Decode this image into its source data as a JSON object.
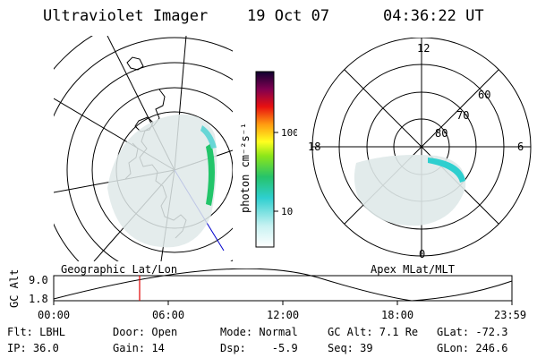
{
  "header": {
    "instrument": "Ultraviolet Imager",
    "date": "19 Oct 07",
    "time": "04:36:22 UT"
  },
  "colorbar": {
    "label": "photon cm⁻²s⁻¹",
    "ticks": [
      "100",
      "10"
    ]
  },
  "polar_plot": {
    "hour_labels": [
      "12",
      "18",
      "6",
      "0"
    ],
    "lat_labels": [
      "60",
      "70",
      "80"
    ]
  },
  "map_labels": {
    "geographic": "Geographic Lat/Lon",
    "apex": "Apex MLat/MLT"
  },
  "altitude_plot": {
    "ylabel": "GC Alt",
    "yticks": [
      "9.0",
      "1.8"
    ],
    "xticks": [
      "00:00",
      "06:00",
      "12:00",
      "18:00",
      "23:59"
    ]
  },
  "footer": {
    "row1": {
      "flt": "Flt: LBHL",
      "door": "Door: Open",
      "mode": "Mode: Normal",
      "gcalt": "GC Alt: 7.1 Re",
      "glat": "GLat: -72.3"
    },
    "row2": {
      "ip": "IP: 36.0",
      "gain": "Gain: 14",
      "dsp": "Dsp:    -5.9",
      "seq": "Seq: 39",
      "glon": "GLon: 246.6"
    }
  }
}
